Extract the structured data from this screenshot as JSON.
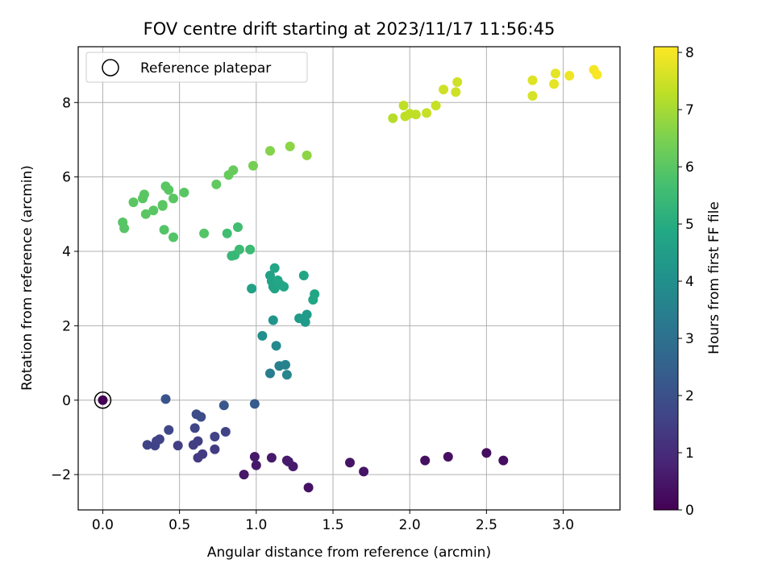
{
  "chart_data": {
    "type": "scatter",
    "title": "FOV centre drift starting at 2023/11/17 11:56:45",
    "xlabel": "Angular distance from reference (arcmin)",
    "ylabel": "Rotation from reference (arcmin)",
    "xlim": [
      -0.16,
      3.37
    ],
    "ylim": [
      -2.95,
      9.5
    ],
    "xticks": [
      0.0,
      0.5,
      1.0,
      1.5,
      2.0,
      2.5,
      3.0
    ],
    "xtick_labels": [
      "0.0",
      "0.5",
      "1.0",
      "1.5",
      "2.0",
      "2.5",
      "3.0"
    ],
    "yticks": [
      -2,
      0,
      2,
      4,
      6,
      8
    ],
    "ytick_labels": [
      "−2",
      "0",
      "2",
      "4",
      "6",
      "8"
    ],
    "grid": true,
    "legend": {
      "placement": "top-left",
      "entries": [
        "Reference platepar"
      ]
    },
    "reference_point": {
      "x": 0.0,
      "y": 0.0,
      "c": 0.0
    },
    "colorbar": {
      "label": "Hours from first FF file",
      "range": [
        0,
        8.1
      ],
      "ticks": [
        0,
        1,
        2,
        3,
        4,
        5,
        6,
        7,
        8
      ],
      "tick_labels": [
        "0",
        "1",
        "2",
        "3",
        "4",
        "5",
        "6",
        "7",
        "8"
      ],
      "colormap": "viridis"
    },
    "points": [
      [
        0.0,
        0.0,
        0.0
      ],
      [
        0.92,
        -2.0,
        0.5
      ],
      [
        0.99,
        -1.52,
        0.55
      ],
      [
        1.0,
        -1.75,
        0.55
      ],
      [
        1.1,
        -1.55,
        0.55
      ],
      [
        1.2,
        -1.62,
        0.55
      ],
      [
        1.21,
        -1.65,
        0.6
      ],
      [
        1.24,
        -1.78,
        0.6
      ],
      [
        1.34,
        -2.35,
        0.4
      ],
      [
        1.61,
        -1.68,
        0.45
      ],
      [
        1.7,
        -1.92,
        0.45
      ],
      [
        2.1,
        -1.62,
        0.35
      ],
      [
        2.25,
        -1.52,
        0.35
      ],
      [
        2.5,
        -1.42,
        0.3
      ],
      [
        2.61,
        -1.62,
        0.3
      ],
      [
        0.29,
        -1.2,
        1.6
      ],
      [
        0.34,
        -1.22,
        1.6
      ],
      [
        0.35,
        -1.1,
        1.6
      ],
      [
        0.37,
        -1.05,
        1.6
      ],
      [
        0.43,
        -0.8,
        1.7
      ],
      [
        0.49,
        -1.22,
        1.5
      ],
      [
        0.59,
        -1.2,
        1.5
      ],
      [
        0.6,
        -0.75,
        1.7
      ],
      [
        0.62,
        -1.55,
        1.4
      ],
      [
        0.62,
        -1.1,
        1.5
      ],
      [
        0.65,
        -1.45,
        1.4
      ],
      [
        0.73,
        -1.32,
        1.4
      ],
      [
        0.73,
        -0.98,
        1.6
      ],
      [
        0.8,
        -0.85,
        1.6
      ],
      [
        0.61,
        -0.38,
        1.9
      ],
      [
        0.64,
        -0.45,
        1.9
      ],
      [
        0.41,
        0.03,
        2.1
      ],
      [
        0.79,
        -0.14,
        2.2
      ],
      [
        0.99,
        -0.1,
        2.3
      ],
      [
        1.09,
        0.72,
        3.4
      ],
      [
        1.15,
        0.92,
        3.5
      ],
      [
        1.19,
        0.95,
        3.6
      ],
      [
        1.2,
        0.68,
        3.7
      ],
      [
        1.13,
        1.46,
        3.8
      ],
      [
        1.04,
        1.73,
        4.0
      ],
      [
        1.11,
        2.15,
        4.2
      ],
      [
        1.28,
        2.2,
        4.4
      ],
      [
        1.32,
        2.1,
        4.4
      ],
      [
        1.33,
        2.3,
        4.4
      ],
      [
        0.97,
        3.0,
        4.6
      ],
      [
        1.09,
        3.35,
        4.6
      ],
      [
        1.1,
        3.2,
        4.7
      ],
      [
        1.11,
        3.05,
        4.7
      ],
      [
        1.12,
        3.0,
        4.7
      ],
      [
        1.12,
        3.55,
        4.8
      ],
      [
        1.14,
        3.22,
        4.8
      ],
      [
        1.16,
        3.1,
        4.8
      ],
      [
        1.18,
        3.05,
        4.8
      ],
      [
        1.31,
        3.35,
        4.8
      ],
      [
        1.37,
        2.7,
        4.8
      ],
      [
        1.38,
        2.85,
        4.8
      ],
      [
        0.84,
        3.88,
        5.4
      ],
      [
        0.86,
        3.9,
        5.4
      ],
      [
        0.89,
        4.05,
        5.5
      ],
      [
        0.96,
        4.05,
        5.5
      ],
      [
        0.81,
        4.48,
        5.6
      ],
      [
        0.88,
        4.65,
        5.6
      ],
      [
        0.4,
        4.58,
        5.9
      ],
      [
        0.46,
        4.38,
        5.9
      ],
      [
        0.66,
        4.48,
        5.9
      ],
      [
        0.13,
        4.78,
        5.95
      ],
      [
        0.14,
        4.62,
        5.95
      ],
      [
        0.2,
        5.32,
        6.0
      ],
      [
        0.26,
        5.42,
        6.0
      ],
      [
        0.27,
        5.53,
        6.0
      ],
      [
        0.28,
        5.0,
        6.0
      ],
      [
        0.33,
        5.1,
        6.0
      ],
      [
        0.39,
        5.22,
        6.0
      ],
      [
        0.39,
        5.25,
        6.0
      ],
      [
        0.41,
        5.75,
        6.0
      ],
      [
        0.43,
        5.65,
        6.0
      ],
      [
        0.46,
        5.42,
        6.0
      ],
      [
        0.53,
        5.58,
        6.0
      ],
      [
        0.74,
        5.8,
        6.1
      ],
      [
        0.82,
        6.05,
        6.2
      ],
      [
        0.85,
        6.18,
        6.2
      ],
      [
        0.98,
        6.3,
        6.4
      ],
      [
        1.09,
        6.7,
        6.6
      ],
      [
        1.22,
        6.82,
        6.7
      ],
      [
        1.33,
        6.58,
        6.7
      ],
      [
        1.89,
        7.58,
        7.2
      ],
      [
        1.96,
        7.92,
        7.3
      ],
      [
        1.97,
        7.63,
        7.3
      ],
      [
        2.0,
        7.7,
        7.3
      ],
      [
        2.04,
        7.68,
        7.3
      ],
      [
        2.11,
        7.72,
        7.4
      ],
      [
        2.17,
        7.92,
        7.4
      ],
      [
        2.22,
        8.35,
        7.5
      ],
      [
        2.3,
        8.28,
        7.5
      ],
      [
        2.31,
        8.55,
        7.5
      ],
      [
        2.8,
        8.18,
        7.6
      ],
      [
        2.8,
        8.6,
        7.7
      ],
      [
        2.94,
        8.5,
        7.8
      ],
      [
        2.95,
        8.78,
        7.8
      ],
      [
        3.04,
        8.72,
        7.9
      ],
      [
        3.2,
        8.88,
        8.0
      ],
      [
        3.22,
        8.75,
        8.05
      ]
    ]
  }
}
